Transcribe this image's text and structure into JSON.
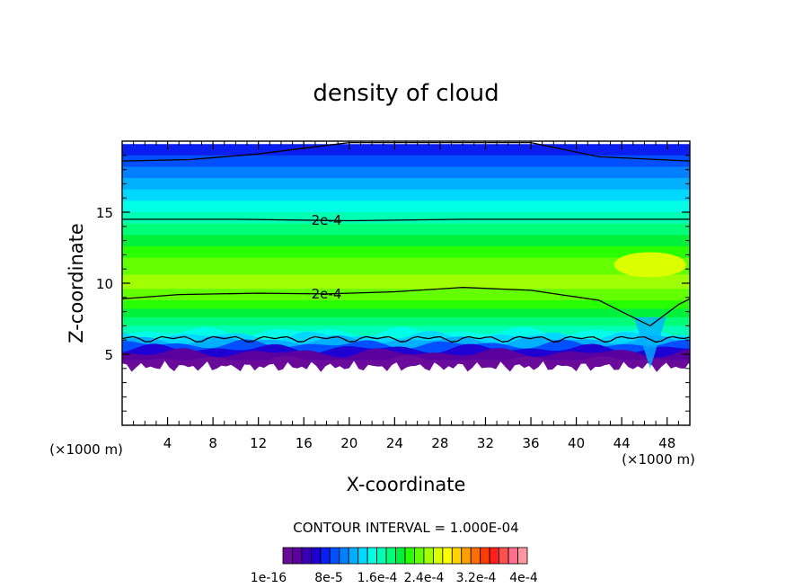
{
  "chart_data": {
    "type": "heatmap",
    "title": "density of cloud",
    "xlabel": "X-coordinate",
    "ylabel": "Z-coordinate",
    "x_unit_left": "(×1000 m)",
    "x_unit_right": "(×1000 m)",
    "xlim": [
      0,
      50
    ],
    "ylim": [
      0,
      20
    ],
    "x_ticks": [
      4,
      8,
      12,
      16,
      20,
      24,
      28,
      32,
      36,
      40,
      44,
      48
    ],
    "y_ticks": [
      5,
      10,
      15
    ],
    "contour_interval_text": "CONTOUR INTERVAL = 1.000E-04",
    "colorbar_tick_labels": [
      "1e-16",
      "8e-5",
      "1.6e-4",
      "2.4e-4",
      "3.2e-4",
      "4e-4"
    ],
    "colorbar_colors": [
      "#6a0a9a",
      "#5a009e",
      "#3c00b4",
      "#1e00d2",
      "#0a1ef0",
      "#0050ff",
      "#0080ff",
      "#00b0ff",
      "#00d8ff",
      "#00ffe6",
      "#00ffb4",
      "#00ff78",
      "#00f03c",
      "#28ff00",
      "#64ff00",
      "#a0ff00",
      "#dcff00",
      "#ffff00",
      "#ffd200",
      "#ffa000",
      "#ff6e00",
      "#ff3c00",
      "#ff1e1e",
      "#ff5050",
      "#ff6e8c",
      "#ff96a0"
    ],
    "contour_labels": [
      {
        "text": "2e-4",
        "x": 18,
        "z": 14.5
      },
      {
        "text": "2e-4",
        "x": 18,
        "z": 9.3
      }
    ],
    "contour_lines_z": {
      "upper": [
        [
          0,
          14.5
        ],
        [
          10,
          14.5
        ],
        [
          20,
          14.4
        ],
        [
          30,
          14.5
        ],
        [
          40,
          14.5
        ],
        [
          50,
          14.5
        ]
      ],
      "lower": [
        [
          0,
          8.9
        ],
        [
          5,
          9.2
        ],
        [
          12,
          9.3
        ],
        [
          18,
          9.25
        ],
        [
          24,
          9.4
        ],
        [
          30,
          9.7
        ],
        [
          36,
          9.5
        ],
        [
          42,
          8.8
        ],
        [
          46.5,
          7.0
        ],
        [
          49,
          8.5
        ],
        [
          50,
          8.9
        ]
      ],
      "top": [
        [
          0,
          18.6
        ],
        [
          6,
          18.7
        ],
        [
          12,
          19.1
        ],
        [
          20,
          19.9
        ],
        [
          36,
          19.9
        ],
        [
          42,
          18.9
        ],
        [
          50,
          18.6
        ]
      ]
    },
    "cloud_base_z": 5.0,
    "field_bands": [
      {
        "z": 19.8,
        "color": "#0a1ef0"
      },
      {
        "z": 19.0,
        "color": "#0050ff"
      },
      {
        "z": 18.2,
        "color": "#0080ff"
      },
      {
        "z": 17.4,
        "color": "#00b0ff"
      },
      {
        "z": 16.6,
        "color": "#00d8ff"
      },
      {
        "z": 15.8,
        "color": "#00ffe6"
      },
      {
        "z": 15.0,
        "color": "#00ffb4"
      },
      {
        "z": 14.2,
        "color": "#00ff78"
      },
      {
        "z": 13.4,
        "color": "#00f03c"
      },
      {
        "z": 12.6,
        "color": "#28ff00"
      },
      {
        "z": 11.8,
        "color": "#64ff00"
      },
      {
        "z": 10.6,
        "color": "#a0ff00"
      },
      {
        "z": 9.6,
        "color": "#64ff00"
      },
      {
        "z": 8.8,
        "color": "#28ff00"
      },
      {
        "z": 8.2,
        "color": "#00f03c"
      },
      {
        "z": 7.6,
        "color": "#00ff78"
      },
      {
        "z": 7.0,
        "color": "#00ffb4"
      },
      {
        "z": 6.6,
        "color": "#00ffe6"
      },
      {
        "z": 6.3,
        "color": "#00d8ff"
      },
      {
        "z": 6.0,
        "color": "#00b0ff"
      },
      {
        "z": 5.7,
        "color": "#0050ff"
      },
      {
        "z": 5.4,
        "color": "#1e00d2"
      },
      {
        "z": 5.1,
        "color": "#5a009e"
      },
      {
        "z": 4.6,
        "color": "#6a0a9a"
      }
    ],
    "hotspot": {
      "x": 46.5,
      "z": 11.3,
      "color": "#dcff00"
    }
  }
}
